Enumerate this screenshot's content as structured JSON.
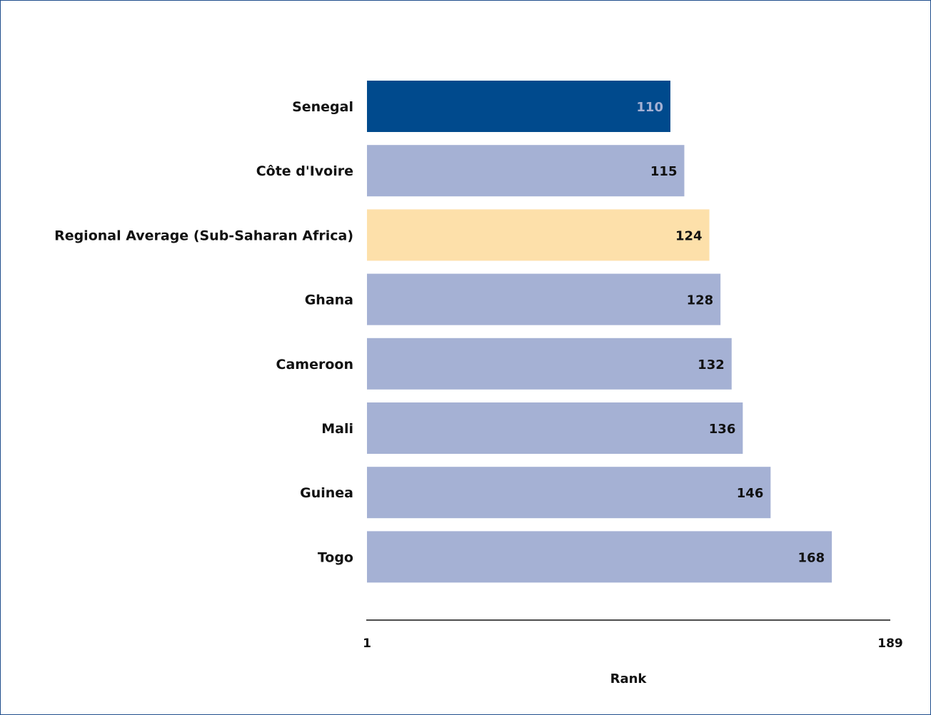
{
  "chart_data": {
    "type": "bar",
    "orientation": "horizontal",
    "categories": [
      "Senegal",
      "Côte d'Ivoire",
      "Regional Average (Sub-Saharan Africa)",
      "Ghana",
      "Cameroon",
      "Mali",
      "Guinea",
      "Togo"
    ],
    "values": [
      110,
      115,
      124,
      128,
      132,
      136,
      146,
      168
    ],
    "value_labels": [
      "110",
      "115",
      "124",
      "128",
      "132",
      "136",
      "146",
      "168"
    ],
    "bar_colors": [
      "#004a8d",
      "#a5b1d4",
      "#fde0aa",
      "#a5b1d4",
      "#a5b1d4",
      "#a5b1d4",
      "#a5b1d4",
      "#a5b1d4"
    ],
    "label_colors": [
      "#a5b1d4",
      "#111111",
      "#111111",
      "#111111",
      "#111111",
      "#111111",
      "#111111",
      "#111111"
    ],
    "xlim": [
      1,
      189
    ],
    "x_ticks": [
      "1",
      "189"
    ],
    "xlabel": "Rank",
    "ylabel": "",
    "title": "",
    "grid": false,
    "legend": "none"
  },
  "colors": {
    "frame_border": "#1f4e8c",
    "axis_line": "#111111",
    "highlight": "#004a8d",
    "regional_average": "#fde0aa",
    "default_bar": "#a5b1d4"
  }
}
